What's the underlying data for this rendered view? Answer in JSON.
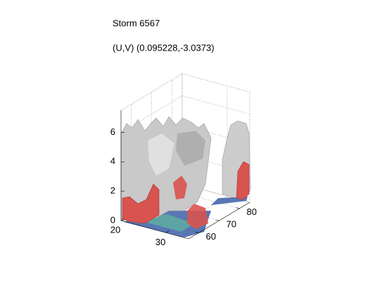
{
  "chart_data": {
    "type": "isosurface3d",
    "title": "Storm 6567",
    "subtitle": "(U,V) (0.095228,-3.0373)",
    "xlim": [
      20,
      35
    ],
    "xticks": [
      20,
      30
    ],
    "ylim": [
      55,
      85
    ],
    "yticks": [
      60,
      70,
      80
    ],
    "zlim": [
      0,
      7.5
    ],
    "zticks": [
      0,
      2,
      4,
      6
    ],
    "grid": true
  }
}
